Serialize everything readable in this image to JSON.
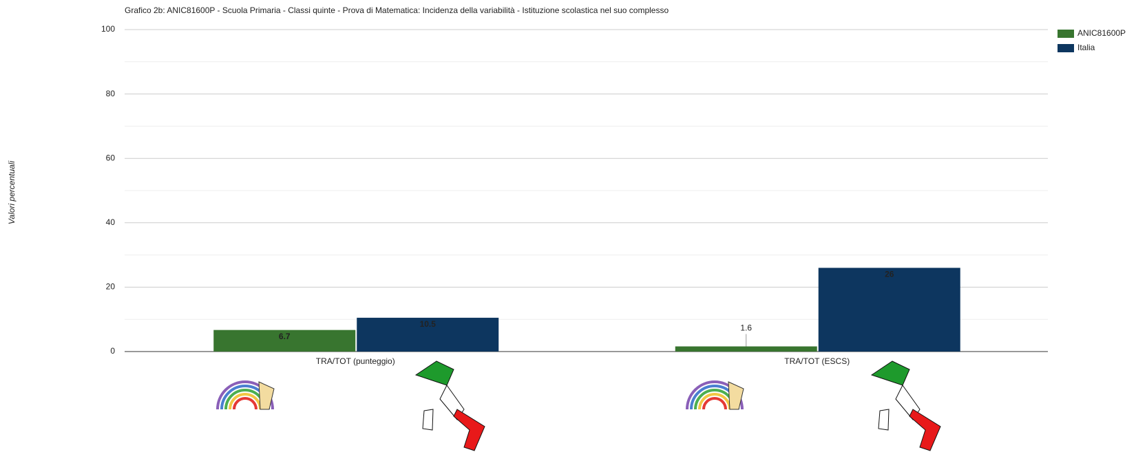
{
  "chart_data": {
    "type": "bar",
    "title": "Grafico 2b: ANIC81600P - Scuola Primaria - Classi quinte - Prova di Matematica: Incidenza della variabilità - Istituzione scolastica nel suo complesso",
    "y_label": "Valori percentuali",
    "categories": [
      "TRA/TOT (punteggio)",
      "TRA/TOT (ESCS)"
    ],
    "series": [
      {
        "name": "ANIC81600P",
        "color": "#38752f",
        "values": [
          6.7,
          1.6
        ]
      },
      {
        "name": "Italia",
        "color": "#0d365f",
        "values": [
          10.5,
          26
        ]
      }
    ],
    "ylim": [
      0,
      100
    ],
    "yticks": [
      0,
      20,
      40,
      60,
      80,
      100
    ],
    "grid": true,
    "legend": "top-right"
  }
}
